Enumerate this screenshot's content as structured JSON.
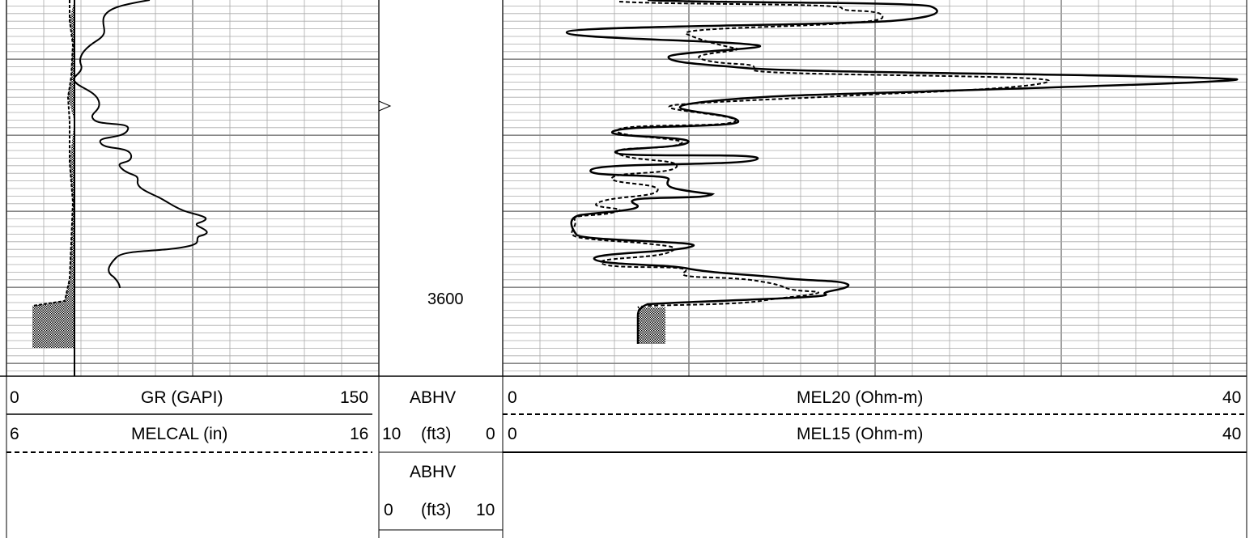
{
  "chart_data": {
    "type": "line",
    "depth_track": {
      "depth_label": "3600",
      "depth_marker_value": 3600
    },
    "track1": {
      "curves": [
        {
          "name": "GR (GAPI)",
          "min": 0,
          "max": 150,
          "style": "solid",
          "min_label": "0",
          "max_label": "150",
          "label": "GR (GAPI)"
        },
        {
          "name": "MELCAL (in)",
          "min": 6,
          "max": 16,
          "style": "dashed",
          "min_label": "6",
          "max_label": "16",
          "label": "MELCAL (in)"
        }
      ]
    },
    "abhv": {
      "row1_label": "ABHV",
      "row2": {
        "left": "10",
        "unit": "(ft3)",
        "right": "0"
      },
      "row3_label": "ABHV",
      "row4": {
        "left": "0",
        "unit": "(ft3)",
        "right": "10"
      }
    },
    "track2": {
      "curves": [
        {
          "name": "MEL20 (Ohm-m)",
          "min": 0,
          "max": 40,
          "style": "dashed",
          "min_label": "0",
          "max_label": "40",
          "label": "MEL20 (Ohm-m)"
        },
        {
          "name": "MEL15 (Ohm-m)",
          "min": 0,
          "max": 40,
          "style": "solid",
          "min_label": "0",
          "max_label": "40",
          "label": "MEL15 (Ohm-m)"
        }
      ]
    }
  }
}
